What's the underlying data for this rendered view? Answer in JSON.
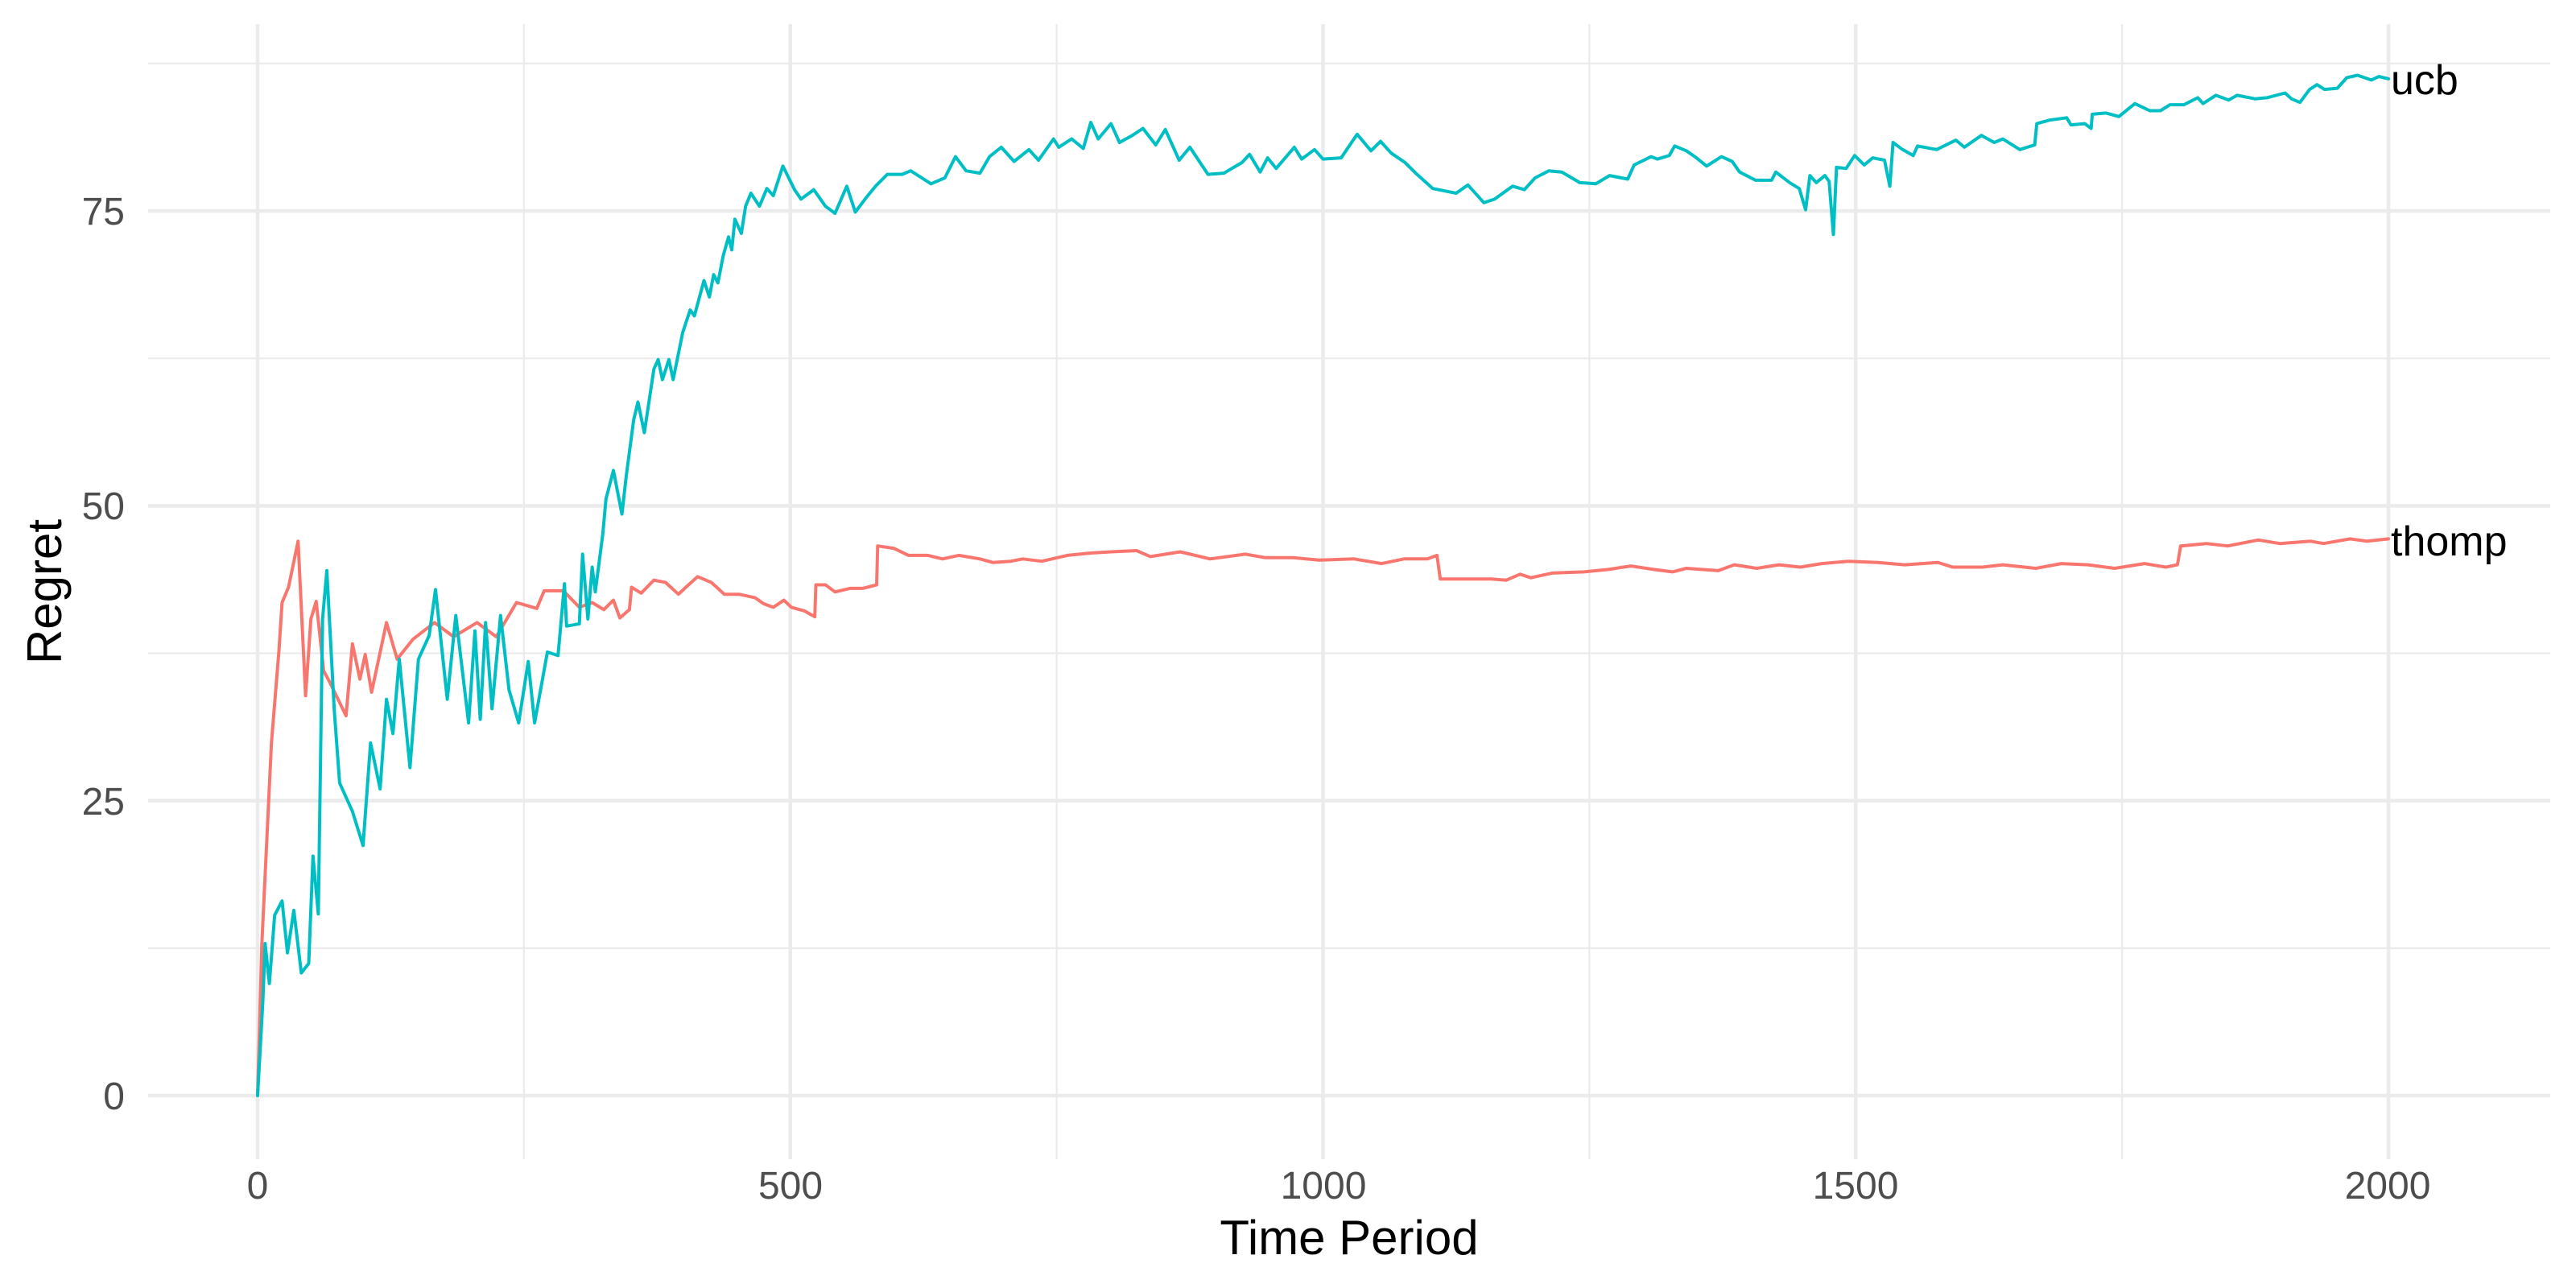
{
  "chart_data": {
    "type": "line",
    "title": "",
    "xlabel": "Time Period",
    "ylabel": "Regret",
    "xlim": [
      -100,
      2130
    ],
    "ylim": [
      -5,
      90
    ],
    "x_ticks": [
      0,
      500,
      1000,
      1500,
      2000
    ],
    "y_ticks": [
      0,
      25,
      50,
      75
    ],
    "x_minor_ticks": [
      250,
      750,
      1250,
      1750
    ],
    "y_minor_ticks": [
      12.5,
      37.5,
      62.5,
      87.5
    ],
    "grid": true,
    "legend": "none (direct labels at line ends)",
    "series": [
      {
        "name": "thomp",
        "color": "#F8766D",
        "x": [
          0,
          4,
          13,
          20,
          23,
          29,
          38,
          45,
          50,
          55,
          62,
          68,
          83,
          89,
          96,
          101,
          107,
          121,
          131,
          146,
          166,
          184,
          206,
          224,
          243,
          262,
          269,
          287,
          302,
          314,
          325,
          334,
          340,
          349,
          351,
          360,
          372,
          383,
          395,
          402,
          413,
          426,
          438,
          452,
          467,
          475,
          484,
          494,
          501,
          513,
          523,
          524,
          533,
          542,
          556,
          568,
          581,
          582,
          597,
          611,
          629,
          643,
          658,
          678,
          690,
          707,
          718,
          736,
          760,
          782,
          801,
          825,
          838,
          866,
          894,
          927,
          946,
          972,
          996,
          1029,
          1055,
          1076,
          1098,
          1107,
          1110,
          1133,
          1158,
          1172,
          1185,
          1195,
          1215,
          1245,
          1267,
          1289,
          1311,
          1328,
          1341,
          1371,
          1386,
          1407,
          1428,
          1448,
          1468,
          1493,
          1521,
          1546,
          1577,
          1591,
          1619,
          1638,
          1669,
          1693,
          1718,
          1743,
          1771,
          1791,
          1802,
          1805,
          1829,
          1849,
          1878,
          1898,
          1927,
          1939,
          1964,
          1980,
          2000
        ],
        "values": [
          0,
          12.9,
          29.9,
          37.7,
          41.8,
          43.1,
          47.0,
          33.9,
          40.4,
          41.9,
          36.0,
          35.0,
          32.2,
          38.3,
          35.3,
          37.4,
          34.2,
          40.1,
          37.0,
          38.7,
          40.1,
          38.9,
          40.1,
          38.9,
          41.8,
          41.3,
          42.8,
          42.8,
          41.4,
          41.8,
          41.2,
          42.0,
          40.5,
          41.2,
          43.1,
          42.6,
          43.7,
          43.5,
          42.5,
          43.1,
          44.0,
          43.5,
          42.5,
          42.5,
          42.2,
          41.7,
          41.4,
          42.0,
          41.4,
          41.1,
          40.6,
          43.3,
          43.3,
          42.7,
          43.0,
          43.0,
          43.3,
          46.6,
          46.4,
          45.8,
          45.8,
          45.5,
          45.8,
          45.5,
          45.2,
          45.3,
          45.5,
          45.3,
          45.8,
          46.0,
          46.1,
          46.2,
          45.7,
          46.1,
          45.5,
          45.9,
          45.6,
          45.6,
          45.4,
          45.5,
          45.1,
          45.5,
          45.5,
          45.8,
          43.8,
          43.8,
          43.8,
          43.7,
          44.2,
          43.9,
          44.3,
          44.4,
          44.6,
          44.9,
          44.6,
          44.4,
          44.7,
          44.5,
          45.0,
          44.7,
          45.0,
          44.8,
          45.1,
          45.3,
          45.2,
          45.0,
          45.2,
          44.8,
          44.8,
          45.0,
          44.7,
          45.1,
          45.0,
          44.7,
          45.1,
          44.8,
          45.0,
          46.6,
          46.8,
          46.6,
          47.1,
          46.8,
          47.0,
          46.8,
          47.2,
          47.0,
          47.2
        ]
      },
      {
        "name": "ucb",
        "color": "#00BFC4",
        "x": [
          0,
          5,
          7,
          11,
          16,
          23,
          28,
          34,
          41,
          48,
          52,
          57,
          61,
          65,
          72,
          77,
          89,
          99,
          106,
          115,
          121,
          127,
          133,
          143,
          151,
          161,
          167,
          178,
          186,
          198,
          204,
          209,
          214,
          220,
          228,
          236,
          245,
          254,
          260,
          272,
          282,
          288,
          290,
          302,
          305,
          310,
          314,
          317,
          324,
          327,
          334,
          342,
          346,
          353,
          357,
          363,
          372,
          376,
          380,
          386,
          390,
          399,
          406,
          410,
          419,
          424,
          428,
          432,
          437,
          442,
          445,
          448,
          454,
          458,
          463,
          471,
          478,
          484,
          493,
          504,
          510,
          522,
          533,
          542,
          553,
          561,
          571,
          580,
          591,
          605,
          613,
          632,
          645,
          655,
          665,
          678,
          687,
          698,
          710,
          724,
          733,
          747,
          752,
          764,
          775,
          782,
          789,
          801,
          809,
          821,
          831,
          843,
          852,
          865,
          875,
          892,
          907,
          924,
          931,
          941,
          948,
          956,
          973,
          980,
          992,
          1000,
          1017,
          1032,
          1045,
          1054,
          1064,
          1077,
          1087,
          1103,
          1125,
          1136,
          1151,
          1161,
          1178,
          1189,
          1199,
          1212,
          1224,
          1241,
          1256,
          1269,
          1286,
          1292,
          1308,
          1314,
          1325,
          1330,
          1341,
          1349,
          1360,
          1374,
          1384,
          1391,
          1406,
          1421,
          1425,
          1438,
          1447,
          1453,
          1457,
          1463,
          1471,
          1475,
          1479,
          1482,
          1491,
          1499,
          1508,
          1516,
          1527,
          1532,
          1535,
          1544,
          1554,
          1558,
          1576,
          1594,
          1602,
          1618,
          1630,
          1638,
          1654,
          1668,
          1670,
          1682,
          1698,
          1702,
          1715,
          1721,
          1722,
          1735,
          1747,
          1762,
          1776,
          1786,
          1795,
          1808,
          1821,
          1826,
          1838,
          1850,
          1858,
          1875,
          1886,
          1903,
          1909,
          1917,
          1926,
          1933,
          1940,
          1952,
          1961,
          1971,
          1984,
          1991,
          2000
        ],
        "values": [
          0,
          8.1,
          12.9,
          9.5,
          15.3,
          16.5,
          12.1,
          15.7,
          10.4,
          11.2,
          20.3,
          15.4,
          40.4,
          44.5,
          32.6,
          26.5,
          24.1,
          21.2,
          29.9,
          26.0,
          33.6,
          30.7,
          37.0,
          27.8,
          37.0,
          39.0,
          42.9,
          33.6,
          40.7,
          31.6,
          39.4,
          31.9,
          40.1,
          32.8,
          40.7,
          34.4,
          31.6,
          36.8,
          31.6,
          37.6,
          37.3,
          43.4,
          39.8,
          40.0,
          45.9,
          40.4,
          44.8,
          42.7,
          47.6,
          50.6,
          53.0,
          49.3,
          52.5,
          57.3,
          58.8,
          56.2,
          61.6,
          62.4,
          60.7,
          62.4,
          60.7,
          64.7,
          66.6,
          66.1,
          69.1,
          67.7,
          69.6,
          68.9,
          71.2,
          72.8,
          71.7,
          74.3,
          73.1,
          75.4,
          76.5,
          75.4,
          76.9,
          76.3,
          78.8,
          76.8,
          76.0,
          76.8,
          75.4,
          74.8,
          77.1,
          74.9,
          76.1,
          77.1,
          78.1,
          78.1,
          78.4,
          77.3,
          77.8,
          79.6,
          78.4,
          78.2,
          79.6,
          80.4,
          79.2,
          80.2,
          79.3,
          81.1,
          80.4,
          81.1,
          80.3,
          82.5,
          81.1,
          82.4,
          80.8,
          81.4,
          82.0,
          80.6,
          81.9,
          79.3,
          80.4,
          78.1,
          78.2,
          79.1,
          79.8,
          78.3,
          79.5,
          78.6,
          80.4,
          79.4,
          80.2,
          79.4,
          79.5,
          81.5,
          80.1,
          80.9,
          79.9,
          79.1,
          78.2,
          76.9,
          76.5,
          77.2,
          75.7,
          76.0,
          77.1,
          76.8,
          77.8,
          78.4,
          78.3,
          77.4,
          77.3,
          78.0,
          77.7,
          78.9,
          79.6,
          79.4,
          79.7,
          80.5,
          80.1,
          79.6,
          78.8,
          79.6,
          79.2,
          78.3,
          77.6,
          77.6,
          78.3,
          77.4,
          76.9,
          75.1,
          78.0,
          77.4,
          78.0,
          77.5,
          73.0,
          78.7,
          78.6,
          79.7,
          78.9,
          79.5,
          79.3,
          77.1,
          80.8,
          80.2,
          79.7,
          80.5,
          80.2,
          81.0,
          80.4,
          81.4,
          80.8,
          81.1,
          80.2,
          80.6,
          82.4,
          82.7,
          82.9,
          82.3,
          82.4,
          82.0,
          83.2,
          83.3,
          83.0,
          84.1,
          83.5,
          83.5,
          84.0,
          84.0,
          84.6,
          84.1,
          84.8,
          84.4,
          84.8,
          84.5,
          84.6,
          85.0,
          84.5,
          84.2,
          85.3,
          85.7,
          85.3,
          85.4,
          86.3,
          86.5,
          86.1,
          86.4,
          86.2
        ]
      }
    ]
  },
  "axes": {
    "x_title": "Time Period",
    "y_title": "Regret",
    "x_tick_labels": [
      "0",
      "500",
      "1000",
      "1500",
      "2000"
    ],
    "y_tick_labels": [
      "0",
      "25",
      "50",
      "75"
    ]
  },
  "labels": {
    "thomp": "thomp",
    "ucb": "ucb"
  }
}
